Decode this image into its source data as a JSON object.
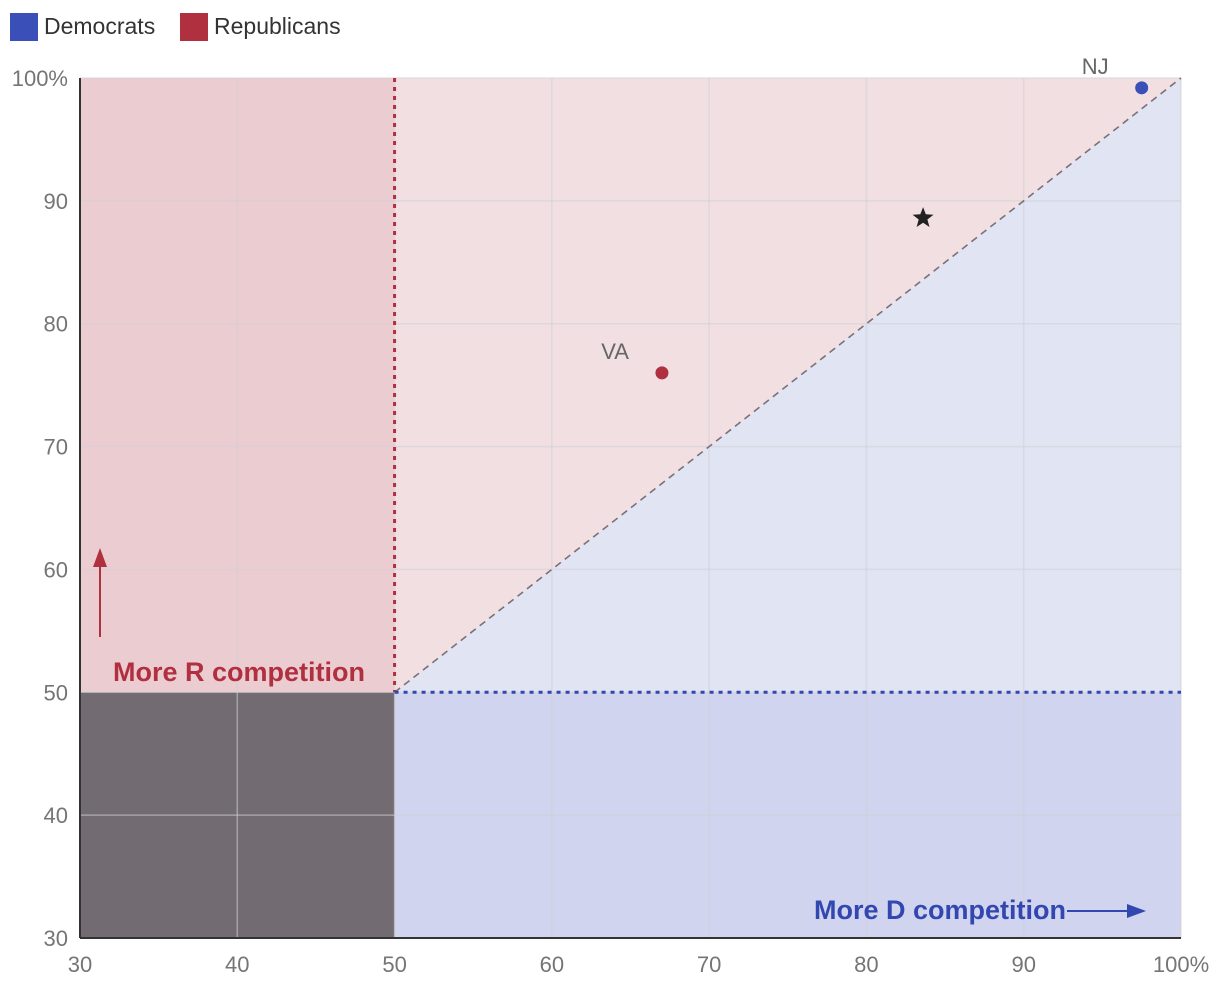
{
  "chart_data": {
    "type": "scatter",
    "legend": {
      "placement": "top-left",
      "entries": [
        {
          "name": "Democrats",
          "color": "#3b4fb8"
        },
        {
          "name": "Republicans",
          "color": "#b03040"
        }
      ]
    },
    "xlim": [
      30,
      100
    ],
    "ylim": [
      30,
      100
    ],
    "x_ticks": [
      "30",
      "40",
      "50",
      "60",
      "70",
      "80",
      "90",
      "100%"
    ],
    "y_ticks": [
      "30",
      "40",
      "50",
      "60",
      "70",
      "80",
      "90",
      "100%"
    ],
    "grid": true,
    "threshold": 50,
    "diagonal": {
      "from": [
        50,
        50
      ],
      "to": [
        100,
        100
      ],
      "style": "dashed"
    },
    "points": [
      {
        "label": "VA",
        "x": 67,
        "y": 76,
        "party": "Republicans",
        "marker": "circle"
      },
      {
        "label": "NJ",
        "x": 97.5,
        "y": 99.2,
        "party": "Democrats",
        "marker": "circle"
      },
      {
        "label": "",
        "x": 83.6,
        "y": 88.6,
        "party": "",
        "marker": "star"
      }
    ],
    "annotations": {
      "r": "More R competition",
      "d": "More D competition"
    },
    "colors": {
      "r_band": "#ebcdd1",
      "r_triangle": "#f2dfe2",
      "d_triangle": "#e1e4f3",
      "d_band": "#d0d4ee",
      "gray_box": "#726c72",
      "r_accent": "#b03040",
      "d_accent": "#3347b0",
      "star": "#222222"
    }
  }
}
